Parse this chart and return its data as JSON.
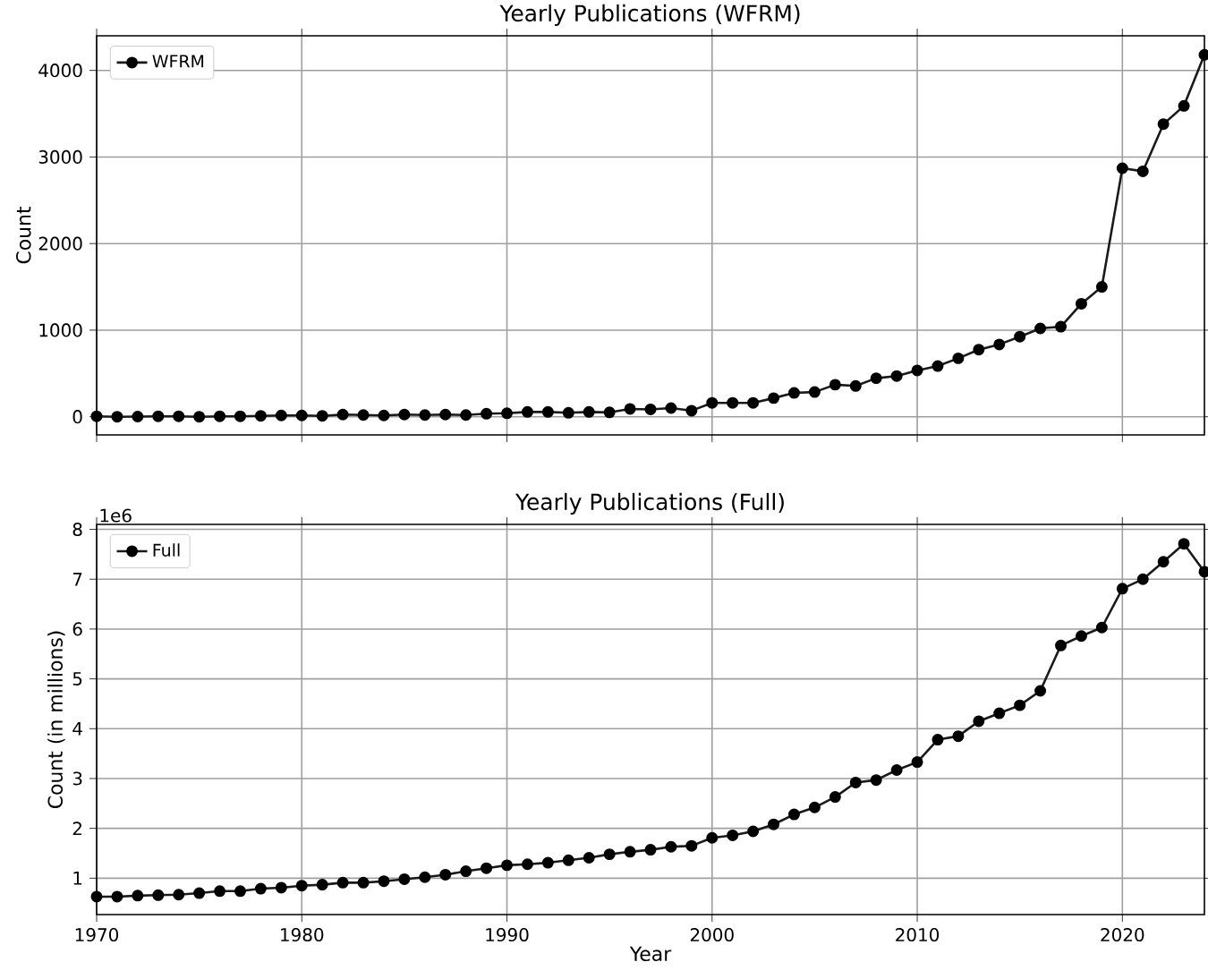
{
  "chart_data": [
    {
      "type": "line",
      "title": "Yearly Publications (WFRM)",
      "ylabel": "Count",
      "x": [
        1970,
        1971,
        1972,
        1973,
        1974,
        1975,
        1976,
        1977,
        1978,
        1979,
        1980,
        1981,
        1982,
        1983,
        1984,
        1985,
        1986,
        1987,
        1988,
        1989,
        1990,
        1991,
        1992,
        1993,
        1994,
        1995,
        1996,
        1997,
        1998,
        1999,
        2000,
        2001,
        2002,
        2003,
        2004,
        2005,
        2006,
        2007,
        2008,
        2009,
        2010,
        2011,
        2012,
        2013,
        2014,
        2015,
        2016,
        2017,
        2018,
        2019,
        2020,
        2021,
        2022,
        2023,
        2024
      ],
      "series": [
        {
          "name": "WFRM",
          "color": "#1a1a1a",
          "values": [
            5,
            0,
            2,
            5,
            5,
            0,
            5,
            5,
            10,
            15,
            15,
            10,
            25,
            20,
            15,
            25,
            20,
            25,
            20,
            35,
            40,
            55,
            55,
            45,
            55,
            50,
            90,
            85,
            100,
            70,
            160,
            160,
            160,
            215,
            275,
            285,
            370,
            355,
            445,
            470,
            535,
            585,
            675,
            775,
            835,
            925,
            1020,
            1040,
            1305,
            1500,
            2870,
            2835,
            3380,
            3590,
            4180
          ]
        }
      ],
      "xlim": [
        1970,
        2024
      ],
      "ylim": [
        -210,
        4400
      ],
      "xticks": [
        1970,
        1980,
        1990,
        2000,
        2010,
        2020
      ],
      "yticks": [
        0,
        1000,
        2000,
        3000,
        4000
      ],
      "tick_labels": "y",
      "grid": true,
      "legend": "top left",
      "marker": "circle",
      "line_style": "solid"
    },
    {
      "type": "line",
      "title": "Yearly Publications (Full)",
      "xlabel": "Year",
      "ylabel": "Count (in millions)",
      "annotations": [
        "1e6"
      ],
      "x": [
        1970,
        1971,
        1972,
        1973,
        1974,
        1975,
        1976,
        1977,
        1978,
        1979,
        1980,
        1981,
        1982,
        1983,
        1984,
        1985,
        1986,
        1987,
        1988,
        1989,
        1990,
        1991,
        1992,
        1993,
        1994,
        1995,
        1996,
        1997,
        1998,
        1999,
        2000,
        2001,
        2002,
        2003,
        2004,
        2005,
        2006,
        2007,
        2008,
        2009,
        2010,
        2011,
        2012,
        2013,
        2014,
        2015,
        2016,
        2017,
        2018,
        2019,
        2020,
        2021,
        2022,
        2023,
        2024
      ],
      "series": [
        {
          "name": "Full",
          "color": "#1a1a1a",
          "values": [
            0.63,
            0.63,
            0.65,
            0.66,
            0.67,
            0.7,
            0.74,
            0.74,
            0.79,
            0.81,
            0.85,
            0.87,
            0.91,
            0.91,
            0.94,
            0.98,
            1.02,
            1.07,
            1.14,
            1.2,
            1.26,
            1.28,
            1.31,
            1.36,
            1.41,
            1.48,
            1.53,
            1.57,
            1.63,
            1.65,
            1.81,
            1.86,
            1.94,
            2.08,
            2.28,
            2.42,
            2.63,
            2.92,
            2.97,
            3.17,
            3.33,
            3.78,
            3.85,
            4.15,
            4.31,
            4.47,
            4.76,
            5.67,
            5.86,
            6.03,
            6.81,
            7.0,
            7.35,
            7.71,
            7.15
          ]
        }
      ],
      "xlim": [
        1970,
        2024
      ],
      "ylim": [
        0.27,
        8.1
      ],
      "xticks": [
        1970,
        1980,
        1990,
        2000,
        2010,
        2020
      ],
      "yticks": [
        1,
        2,
        3,
        4,
        5,
        6,
        7,
        8
      ],
      "grid": true,
      "legend": "top left",
      "marker": "circle",
      "line_style": "solid"
    }
  ]
}
